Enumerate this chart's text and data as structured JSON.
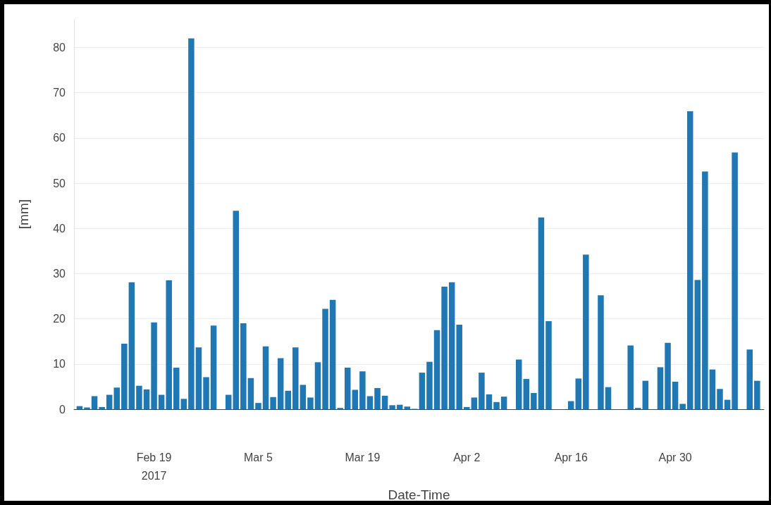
{
  "chart_data": {
    "type": "bar",
    "xlabel": "Date-Time",
    "ylabel": "[mm]",
    "color": "#1f77b4",
    "grid": "y",
    "x": [
      "2017-02-09",
      "2017-02-10",
      "2017-02-11",
      "2017-02-12",
      "2017-02-13",
      "2017-02-14",
      "2017-02-15",
      "2017-02-16",
      "2017-02-17",
      "2017-02-18",
      "2017-02-19",
      "2017-02-20",
      "2017-02-21",
      "2017-02-22",
      "2017-02-23",
      "2017-02-24",
      "2017-02-25",
      "2017-02-26",
      "2017-02-27",
      "2017-02-28",
      "2017-03-01",
      "2017-03-02",
      "2017-03-03",
      "2017-03-04",
      "2017-03-05",
      "2017-03-06",
      "2017-03-07",
      "2017-03-08",
      "2017-03-09",
      "2017-03-10",
      "2017-03-11",
      "2017-03-12",
      "2017-03-13",
      "2017-03-14",
      "2017-03-15",
      "2017-03-16",
      "2017-03-17",
      "2017-03-18",
      "2017-03-19",
      "2017-03-20",
      "2017-03-21",
      "2017-03-22",
      "2017-03-23",
      "2017-03-24",
      "2017-03-25",
      "2017-03-26",
      "2017-03-27",
      "2017-03-28",
      "2017-03-29",
      "2017-03-30",
      "2017-03-31",
      "2017-04-01",
      "2017-04-02",
      "2017-04-03",
      "2017-04-04",
      "2017-04-05",
      "2017-04-06",
      "2017-04-07",
      "2017-04-08",
      "2017-04-09",
      "2017-04-10",
      "2017-04-11",
      "2017-04-12",
      "2017-04-13",
      "2017-04-14",
      "2017-04-15",
      "2017-04-16",
      "2017-04-17",
      "2017-04-18",
      "2017-04-19",
      "2017-04-20",
      "2017-04-21",
      "2017-04-22",
      "2017-04-23",
      "2017-04-24",
      "2017-04-25",
      "2017-04-26",
      "2017-04-27",
      "2017-04-28",
      "2017-04-29",
      "2017-04-30",
      "2017-05-01",
      "2017-05-02",
      "2017-05-03",
      "2017-05-04",
      "2017-05-05",
      "2017-05-06",
      "2017-05-07",
      "2017-05-08",
      "2017-05-09",
      "2017-05-10",
      "2017-05-11"
    ],
    "values": [
      0.7,
      0.4,
      2.9,
      0.5,
      3.2,
      4.8,
      14.5,
      28.1,
      5.2,
      4.4,
      19.2,
      3.2,
      28.5,
      9.2,
      2.3,
      82,
      13.7,
      7.1,
      18.5,
      0,
      3.2,
      43.9,
      19.0,
      6.9,
      1.4,
      13.9,
      2.7,
      11.3,
      4.1,
      13.7,
      5.4,
      2.6,
      10.4,
      22.2,
      24.2,
      0.3,
      9.2,
      4.3,
      8.4,
      2.9,
      4.7,
      3.0,
      0.9,
      1.0,
      0.6,
      0.1,
      8.1,
      10.5,
      17.5,
      27.1,
      28.1,
      18.7,
      0.5,
      2.6,
      8.1,
      3.3,
      1.6,
      2.8,
      0,
      11.0,
      6.7,
      3.6,
      42.4,
      19.5,
      0,
      0,
      1.8,
      6.8,
      34.2,
      0,
      25.2,
      4.9,
      0,
      0,
      14.1,
      0.3,
      6.3,
      0,
      9.3,
      14.7,
      6.1,
      1.2,
      65.9,
      28.6,
      52.6,
      8.8,
      4.5,
      2.1,
      56.8,
      0,
      13.2,
      6.3
    ],
    "xlim": [
      "2017-02-08T06:00",
      "2017-05-11T22:00"
    ],
    "xticks": [
      {
        "value": "2017-02-19",
        "label": "Feb 19\n2017"
      },
      {
        "value": "2017-03-05",
        "label": "Mar 5"
      },
      {
        "value": "2017-03-19",
        "label": "Mar 19"
      },
      {
        "value": "2017-04-02",
        "label": "Apr 2"
      },
      {
        "value": "2017-04-16",
        "label": "Apr 16"
      },
      {
        "value": "2017-04-30",
        "label": "Apr 30"
      }
    ],
    "ylim": [
      0,
      86.3
    ],
    "yticks": [
      0,
      10,
      20,
      30,
      40,
      50,
      60,
      70,
      80
    ]
  }
}
